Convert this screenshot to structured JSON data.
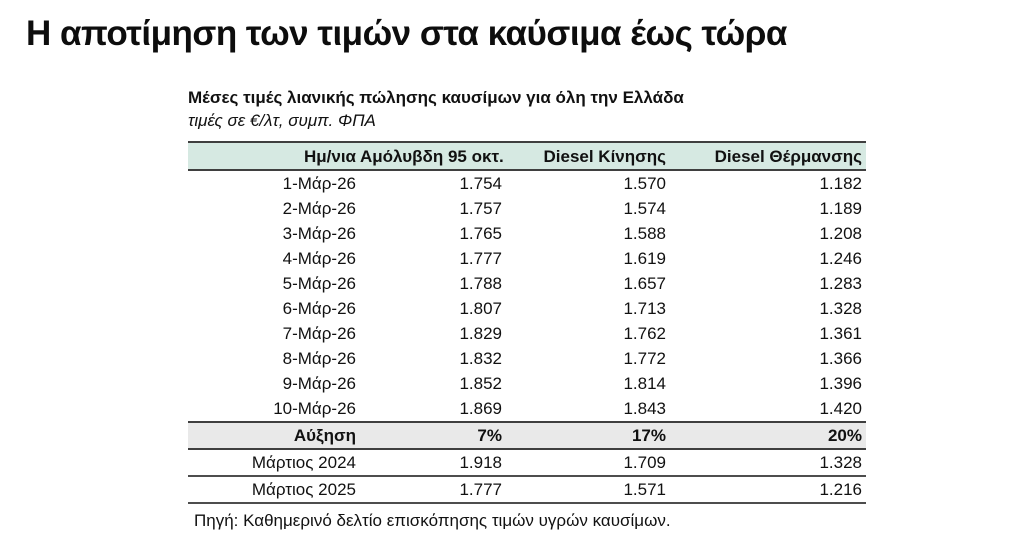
{
  "slide": {
    "title": "Η αποτίμηση των τιμών στα καύσιμα έως τώρα"
  },
  "table": {
    "caption": "Μέσες τιμές λιανικής πώλησης καυσίμων για όλη την Ελλάδα",
    "unit_note": "τιμές σε €/λτ, συμπ. ΦΠΑ",
    "columns": [
      "Ημ/νια",
      "Αμόλυβδη 95 οκτ.",
      "Diesel Κίνησης",
      "Diesel Θέρμανσης"
    ],
    "rows": [
      {
        "date": "1-Μάρ-26",
        "values": [
          "1.754",
          "1.570",
          "1.182"
        ]
      },
      {
        "date": "2-Μάρ-26",
        "values": [
          "1.757",
          "1.574",
          "1.189"
        ]
      },
      {
        "date": "3-Μάρ-26",
        "values": [
          "1.765",
          "1.588",
          "1.208"
        ]
      },
      {
        "date": "4-Μάρ-26",
        "values": [
          "1.777",
          "1.619",
          "1.246"
        ]
      },
      {
        "date": "5-Μάρ-26",
        "values": [
          "1.788",
          "1.657",
          "1.283"
        ]
      },
      {
        "date": "6-Μάρ-26",
        "values": [
          "1.807",
          "1.713",
          "1.328"
        ]
      },
      {
        "date": "7-Μάρ-26",
        "values": [
          "1.829",
          "1.762",
          "1.361"
        ]
      },
      {
        "date": "8-Μάρ-26",
        "values": [
          "1.832",
          "1.772",
          "1.366"
        ]
      },
      {
        "date": "9-Μάρ-26",
        "values": [
          "1.852",
          "1.814",
          "1.396"
        ]
      },
      {
        "date": "10-Μάρ-26",
        "values": [
          "1.869",
          "1.843",
          "1.420"
        ]
      }
    ],
    "increase_row": {
      "label": "Αύξηση",
      "values": [
        "7%",
        "17%",
        "20%"
      ]
    },
    "comparison_rows": [
      {
        "label": "Μάρτιος 2024",
        "values": [
          "1.918",
          "1.709",
          "1.328"
        ]
      },
      {
        "label": "Μάρτιος 2025",
        "values": [
          "1.777",
          "1.571",
          "1.216"
        ]
      }
    ],
    "source": "Πηγή: Καθημερινό δελτίο επισκόπησης τιμών υγρών καυσίμων."
  },
  "colors": {
    "header_row_bg": "#d6e9e2",
    "increase_row_bg": "#e9e9e9",
    "table_border": "#3f3f3f",
    "text": "#111111"
  }
}
